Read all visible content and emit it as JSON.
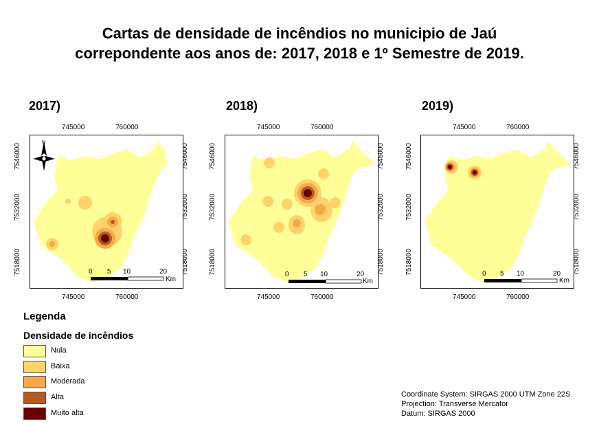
{
  "title_line1": "Cartas de densidade de incêndios no municipio de Jaú",
  "title_line2": "correpondente aos anos de: 2017, 2018 e 1º Semestre de 2019.",
  "panels": [
    {
      "year": "2017)",
      "x_ticks": [
        "745000",
        "760000"
      ],
      "x_ticks_bottom": [
        "745000",
        "760000"
      ],
      "y_ticks": [
        "7546000",
        "7532000",
        "7518000"
      ],
      "north_arrow": "N",
      "hotspots": [
        "Baixa",
        "Moderada",
        "Alta",
        "Muito alta"
      ]
    },
    {
      "year": "2018)",
      "x_ticks": [
        "745000",
        "760000"
      ],
      "x_ticks_bottom": [
        "745000",
        "760000"
      ],
      "y_ticks": [
        "7546000",
        "7532000",
        "7518000"
      ],
      "hotspots": [
        "Baixa",
        "Moderada",
        "Alta",
        "Muito alta"
      ]
    },
    {
      "year": "2019)",
      "x_ticks": [
        "745000",
        "760000"
      ],
      "x_ticks_bottom": [
        "745000",
        "760000"
      ],
      "y_ticks": [
        "7546000",
        "7532000",
        "7518000"
      ],
      "hotspots": [
        "Baixa",
        "Moderada",
        "Alta",
        "Muito alta"
      ]
    }
  ],
  "scale": {
    "labels": [
      "0",
      "5",
      "10",
      "20"
    ],
    "unit": "Km"
  },
  "legend": {
    "title": "Legenda",
    "subtitle": "Densidade de incêndios",
    "items": [
      {
        "label": "Nula",
        "color": "#ffff99"
      },
      {
        "label": "Baixa",
        "color": "#fed36a"
      },
      {
        "label": "Moderada",
        "color": "#f7a94a"
      },
      {
        "label": "Alta",
        "color": "#b45a22"
      },
      {
        "label": "Muito alta",
        "color": "#6b0000"
      }
    ]
  },
  "crs": {
    "line1": "Coordinate System: SIRGAS 2000 UTM Zone 22S",
    "line2": "Projection: Transverse Mercator",
    "line3": "Datum: SIRGAS 2000"
  }
}
